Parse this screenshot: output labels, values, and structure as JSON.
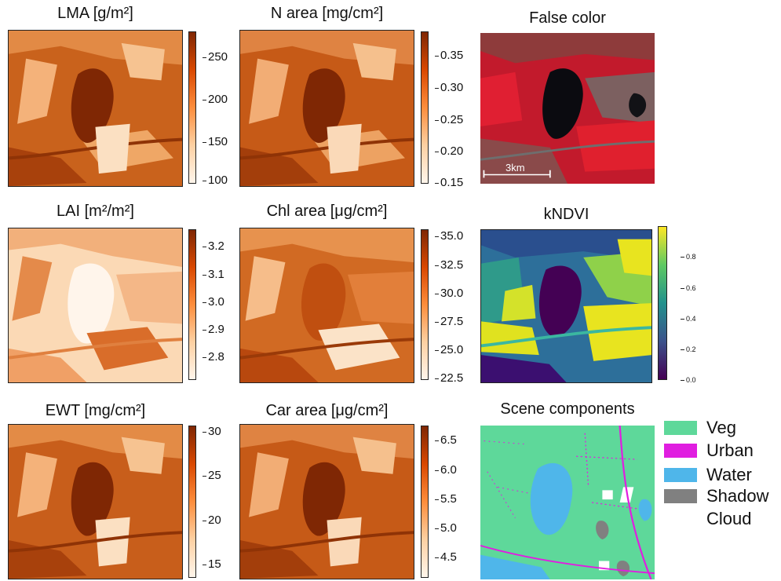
{
  "panels": {
    "lma": {
      "title": "LMA [g/m²]",
      "ticks": [
        "250",
        "200",
        "150",
        "100"
      ]
    },
    "narea": {
      "title": "N area [mg/cm²]",
      "ticks": [
        "0.35",
        "0.30",
        "0.25",
        "0.20",
        "0.15"
      ]
    },
    "false_color": {
      "title": "False color",
      "scale_label": "3km"
    },
    "lai": {
      "title": "LAI [m²/m²]",
      "ticks": [
        "3.2",
        "3.1",
        "3.0",
        "2.9",
        "2.8"
      ]
    },
    "chl": {
      "title": "Chl area [μg/cm²]",
      "ticks": [
        "35.0",
        "32.5",
        "30.0",
        "27.5",
        "25.0",
        "22.5"
      ]
    },
    "kndvi": {
      "title": "kNDVI",
      "ticks": [
        "0.8",
        "0.6",
        "0.4",
        "0.2",
        "0.0"
      ]
    },
    "ewt": {
      "title": "EWT [mg/cm²]",
      "ticks": [
        "30",
        "25",
        "20",
        "15"
      ]
    },
    "car": {
      "title": "Car area [μg/cm²]",
      "ticks": [
        "6.5",
        "6.0",
        "5.5",
        "5.0",
        "4.5"
      ]
    },
    "scene": {
      "title": "Scene components"
    }
  },
  "legend": [
    {
      "label": "Veg",
      "color": "#5ed89a"
    },
    {
      "label": "Urban",
      "color": "#e01ee0"
    },
    {
      "label": "Water",
      "color": "#4fb6ea"
    },
    {
      "label": "Shadow",
      "color": "#808080"
    },
    {
      "label": "Cloud",
      "color": "#ffffff"
    }
  ],
  "colors": {
    "oranges_dark": "#7f2704",
    "oranges_light": "#fff5eb"
  }
}
